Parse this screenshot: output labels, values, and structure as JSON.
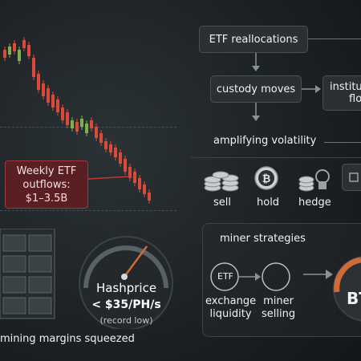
{
  "chart": {
    "callout_line1": "Weekly ETF",
    "callout_line2": "outflows:",
    "callout_line3": "$1–3.5B"
  },
  "flow": {
    "etf_reallocations": "ETF reallocations",
    "custody_moves": "custody moves",
    "institutional_line1": "institut",
    "institutional_line2": "flow",
    "amplifying_volatility": "amplifying volatility",
    "actions": [
      {
        "label": "sell",
        "icon": "coins-stack-icon"
      },
      {
        "label": "hold",
        "icon": "bitcoin-coin-icon"
      },
      {
        "label": "hedge",
        "icon": "hedge-coins-icon"
      }
    ]
  },
  "miner": {
    "title": "miner strategies",
    "etf_circle": "ETF",
    "exchange_liquidity_line1": "exchange",
    "exchange_liquidity_line2": "liquidity",
    "miner_selling_line1": "miner",
    "miner_selling_line2": "selling",
    "btc_badge": "BT"
  },
  "hashprice": {
    "title": "Hashprice",
    "value": "< $35/PH/s",
    "note": "(record low)"
  },
  "footer": {
    "caption": "mining margins squeezed"
  },
  "colors": {
    "bear": "#d94a3a",
    "bull": "#7fb04a",
    "gauge_accent": "#d06a38"
  }
}
